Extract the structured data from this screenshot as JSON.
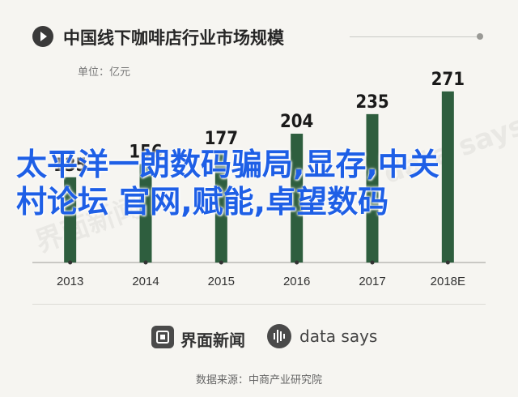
{
  "header": {
    "title": "中国线下咖啡店行业市场规模",
    "unit": "单位：亿元"
  },
  "overlay_text": "太平洋一朗数码骗局,显存,中关村论坛 官网,赋能,卓望数码",
  "watermarks": [
    "界面新闻",
    "data says"
  ],
  "chart_data": {
    "type": "bar",
    "title": "中国线下咖啡店行业市场规模",
    "ylabel": "单位：亿元",
    "categories": [
      "2013",
      "2014",
      "2015",
      "2016",
      "2017",
      "2018E"
    ],
    "values": [
      135,
      156,
      177,
      204,
      235,
      271
    ],
    "ylim": [
      0,
      290
    ],
    "bar_color": "#2e5e3e",
    "grid": false,
    "legend": "none"
  },
  "footer": {
    "brand_left": "界面新闻",
    "brand_right": "data says",
    "source": "数据来源：中商产业研究院"
  },
  "colors": {
    "background": "#f6f5f1",
    "bar": "#2e5e3e",
    "overlay_text": "#1e5fe6"
  }
}
